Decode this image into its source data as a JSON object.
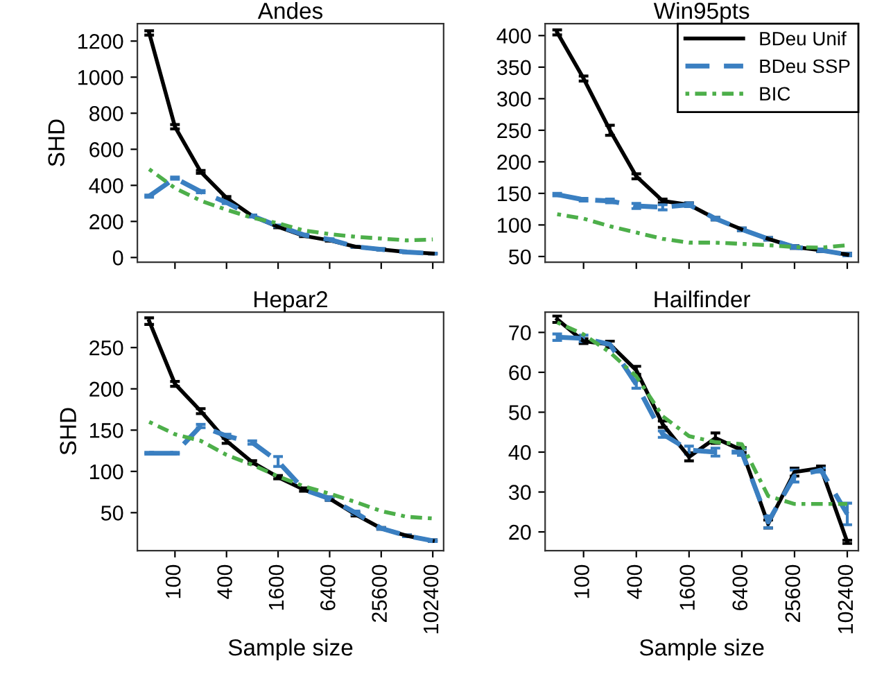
{
  "chart_data": [
    {
      "type": "line",
      "title": "Andes",
      "ylabel": "SHD",
      "x": [
        50,
        100,
        200,
        400,
        800,
        1600,
        3200,
        6400,
        12800,
        25600,
        51200,
        102400
      ],
      "xlim": [
        36.4,
        137100
      ],
      "xticks": [
        100,
        400,
        1600,
        6400,
        25600,
        102400
      ],
      "ylim": [
        -26,
        1297
      ],
      "yticks": [
        0,
        200,
        400,
        600,
        800,
        1000,
        1200
      ],
      "tick_labels": "y",
      "log": "x",
      "grid": false,
      "legend": false,
      "series": [
        {
          "color": "#000000",
          "line_style": "solid",
          "values": [
            1245,
            725,
            475,
            330,
            230,
            170,
            120,
            95,
            60,
            45,
            30,
            22
          ],
          "errors": [
            12,
            12,
            8,
            8,
            5,
            5,
            4,
            4,
            3,
            3,
            2,
            2
          ]
        },
        {
          "color": "#3a7fc1",
          "line_style": "dashed",
          "values": [
            340,
            440,
            365,
            305,
            230,
            175,
            125,
            100,
            60,
            45,
            30,
            22
          ],
          "errors": [
            6,
            6,
            6,
            6,
            5,
            5,
            4,
            4,
            3,
            3,
            2,
            2
          ]
        },
        {
          "color": "#4daf4a",
          "line_style": "dashdot",
          "values": [
            490,
            385,
            315,
            265,
            220,
            190,
            150,
            130,
            115,
            105,
            95,
            100
          ]
        }
      ]
    },
    {
      "type": "line",
      "title": "Win95pts",
      "x": [
        50,
        100,
        200,
        400,
        800,
        1600,
        3200,
        6400,
        12800,
        25600,
        51200,
        102400
      ],
      "xlim": [
        36.4,
        137100
      ],
      "xticks": [
        100,
        400,
        1600,
        6400,
        25600,
        102400
      ],
      "ylim": [
        41,
        419
      ],
      "yticks": [
        50,
        100,
        150,
        200,
        250,
        300,
        350,
        400
      ],
      "tick_labels": "y",
      "log": "x",
      "grid": false,
      "legend": "top right",
      "series": [
        {
          "name": "BDeu Unif",
          "color": "#000000",
          "line_style": "solid",
          "values": [
            405,
            332,
            250,
            177,
            138,
            132,
            110,
            93,
            78,
            65,
            60,
            53
          ],
          "errors": [
            4,
            4,
            8,
            4,
            3,
            3,
            2,
            2,
            2,
            2,
            2,
            2
          ]
        },
        {
          "name": "BDeu SSP",
          "color": "#3a7fc1",
          "line_style": "dashed",
          "values": [
            148,
            140,
            138,
            130,
            128,
            132,
            110,
            93,
            78,
            65,
            60,
            53
          ],
          "errors": [
            2,
            2,
            3,
            4,
            4,
            3,
            2,
            2,
            2,
            2,
            2,
            2
          ]
        },
        {
          "name": "BIC",
          "color": "#4daf4a",
          "line_style": "dashdot",
          "values": [
            117,
            110,
            98,
            88,
            78,
            72,
            72,
            70,
            68,
            65,
            64,
            68
          ]
        }
      ]
    },
    {
      "type": "line",
      "title": "Hepar2",
      "ylabel": "SHD",
      "xlabel": "Sample size",
      "x": [
        50,
        100,
        200,
        400,
        800,
        1600,
        3200,
        6400,
        12800,
        25600,
        51200,
        102400
      ],
      "xlim": [
        36.4,
        137100
      ],
      "xticks": [
        100,
        400,
        1600,
        6400,
        25600,
        102400
      ],
      "ylim": [
        4,
        293
      ],
      "yticks": [
        50,
        100,
        150,
        200,
        250
      ],
      "log": "x",
      "grid": false,
      "legend": false,
      "series": [
        {
          "color": "#000000",
          "line_style": "solid",
          "values": [
            282,
            206,
            173,
            137,
            111,
            93,
            78,
            67,
            48,
            31,
            22,
            16
          ],
          "errors": [
            4,
            3,
            3,
            3,
            2,
            2,
            2,
            2,
            2,
            1,
            1,
            1
          ]
        },
        {
          "color": "#3a7fc1",
          "line_style": "dashed",
          "values": [
            122,
            122,
            155,
            143,
            135,
            112,
            78,
            67,
            50,
            31,
            22,
            16
          ],
          "errors": [
            1,
            1,
            2,
            2,
            2,
            6,
            null,
            2,
            2,
            1,
            1,
            1
          ]
        },
        {
          "color": "#4daf4a",
          "line_style": "dashdot",
          "values": [
            160,
            145,
            137,
            120,
            108,
            94,
            82,
            73,
            63,
            52,
            45,
            43
          ]
        }
      ]
    },
    {
      "type": "line",
      "title": "Hailfinder",
      "xlabel": "Sample size",
      "x": [
        50,
        100,
        200,
        400,
        800,
        1600,
        3200,
        6400,
        12800,
        25600,
        51200,
        102400
      ],
      "xlim": [
        36.4,
        137100
      ],
      "xticks": [
        100,
        400,
        1600,
        6400,
        25600,
        102400
      ],
      "ylim": [
        15.3,
        75.1
      ],
      "yticks": [
        20,
        30,
        40,
        50,
        60,
        70
      ],
      "log": "x",
      "grid": false,
      "legend": false,
      "series": [
        {
          "color": "#000000",
          "line_style": "solid",
          "values": [
            73.3,
            67.8,
            67,
            60.5,
            47,
            38.8,
            43.5,
            40.5,
            22,
            35,
            36,
            17.5
          ],
          "errors": [
            0.8,
            0.6,
            0.8,
            1,
            0.8,
            1,
            1.3,
            0.6,
            1,
            1,
            0.5,
            0.4
          ]
        },
        {
          "color": "#3a7fc1",
          "line_style": "dashed",
          "values": [
            68.8,
            68.5,
            67,
            57,
            44.5,
            40.5,
            40,
            40,
            22.5,
            34,
            35.5,
            24.5
          ],
          "errors": [
            0.8,
            0.8,
            null,
            1,
            0.8,
            1,
            1,
            0.8,
            1.5,
            1.5,
            0.5,
            2.7
          ]
        },
        {
          "color": "#4daf4a",
          "line_style": "dashdot",
          "values": [
            72.5,
            69.5,
            65,
            59,
            49,
            44,
            42.5,
            42,
            29,
            27,
            27,
            27
          ]
        }
      ]
    }
  ]
}
